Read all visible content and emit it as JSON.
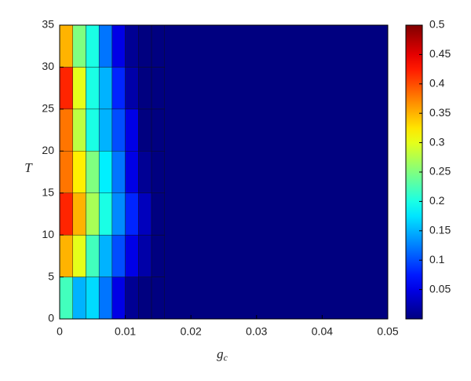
{
  "chart_data": {
    "type": "heatmap",
    "colormap": "jet",
    "xlabel_base": "g",
    "xlabel_subscript": "c",
    "ylabel": "T",
    "x": [
      0.001,
      0.003,
      0.005,
      0.007,
      0.009,
      0.011,
      0.013,
      0.015
    ],
    "y": [
      2.5,
      7.5,
      12.5,
      17.5,
      22.5,
      27.5,
      32.5
    ],
    "z": [
      [
        0.22,
        0.15,
        0.17,
        0.12,
        0.05,
        0.01,
        0,
        0
      ],
      [
        0.35,
        0.3,
        0.22,
        0.15,
        0.1,
        0.05,
        0.02,
        0
      ],
      [
        0.42,
        0.35,
        0.27,
        0.2,
        0.13,
        0.08,
        0.03,
        0
      ],
      [
        0.38,
        0.32,
        0.25,
        0.18,
        0.12,
        0.05,
        0.01,
        0
      ],
      [
        0.38,
        0.28,
        0.2,
        0.15,
        0.1,
        0.05,
        0,
        0
      ],
      [
        0.42,
        0.3,
        0.2,
        0.15,
        0.08,
        0.02,
        0,
        0
      ],
      [
        0.35,
        0.25,
        0.2,
        0.12,
        0.05,
        0.01,
        0,
        0
      ]
    ],
    "xlim": [
      0,
      0.05
    ],
    "xticks": [
      0,
      0.01,
      0.02,
      0.03,
      0.04,
      0.05
    ],
    "ylim": [
      0,
      35
    ],
    "yticks": [
      0,
      5,
      10,
      15,
      20,
      25,
      30,
      35
    ],
    "clim": [
      0,
      0.5
    ],
    "cticks": [
      0.05,
      0.1,
      0.15,
      0.2,
      0.25,
      0.3,
      0.35,
      0.4,
      0.45,
      0.5
    ]
  }
}
